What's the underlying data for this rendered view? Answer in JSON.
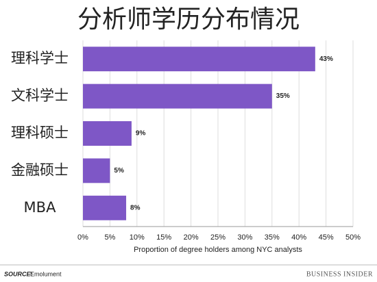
{
  "chart_data": {
    "type": "bar",
    "orientation": "horizontal",
    "title": "分析师学历分布情况",
    "categories": [
      "理科学士",
      "文科学士",
      "理科硕士",
      "金融硕士",
      "MBA"
    ],
    "values": [
      43,
      35,
      9,
      5,
      8
    ],
    "value_labels": [
      "43%",
      "35%",
      "9%",
      "5%",
      "8%"
    ],
    "color": "#7e57c6",
    "xlabel": "Proportion of degree holders among NYC analysts",
    "xlim": [
      0,
      50
    ],
    "xticks": [
      {
        "value": 0,
        "label": "0%"
      },
      {
        "value": 5,
        "label": "5%"
      },
      {
        "value": 10,
        "label": "10%"
      },
      {
        "value": 15,
        "label": "15%"
      },
      {
        "value": 20,
        "label": "20%"
      },
      {
        "value": 25,
        "label": "25%"
      },
      {
        "value": 30,
        "label": "30%"
      },
      {
        "value": 35,
        "label": "35%"
      },
      {
        "value": 40,
        "label": "40%"
      },
      {
        "value": 45,
        "label": "45%"
      },
      {
        "value": 50,
        "label": "50%"
      }
    ],
    "grid": true
  },
  "footer": {
    "source_label": "SOURCE:",
    "source": "Emolument",
    "brand": "BUSINESS INSIDER"
  }
}
